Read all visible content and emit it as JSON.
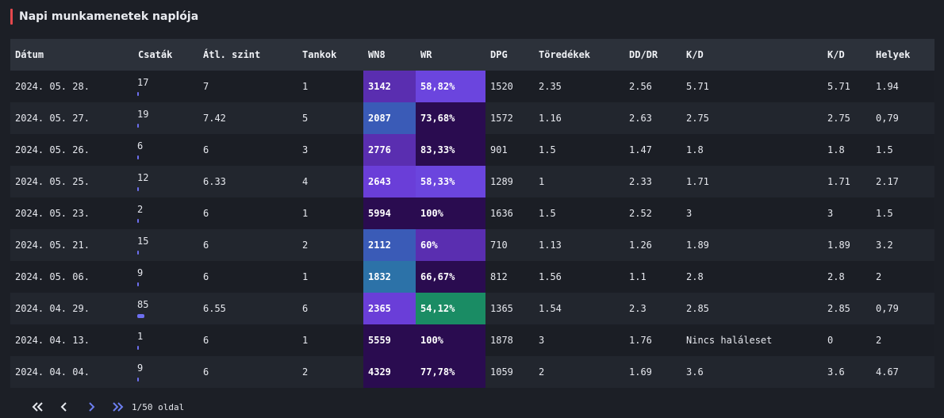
{
  "panel": {
    "title": "Napi munkamenetek naplója"
  },
  "table": {
    "columns": [
      "Dátum",
      "Csaták",
      "Átl. szint",
      "Tankok",
      "WN8",
      "WR",
      "DPG",
      "Töredékek",
      "DD/DR",
      "K/D",
      "K/D",
      "Helyek"
    ],
    "max_battles": 85,
    "rows": [
      {
        "date": "2024. 05. 28.",
        "battles": "17",
        "avg_tier": "7",
        "tanks": "1",
        "wn8": "3142",
        "wr": "58,82%",
        "dpg": "1520",
        "frags": "2.35",
        "dd_dr": "2.56",
        "kd": "5.71",
        "kd2": "5.71",
        "spots": "1.94",
        "wn8_color": "#5a2eb0",
        "wr_color": "#6b45de"
      },
      {
        "date": "2024. 05. 27.",
        "battles": "19",
        "avg_tier": "7.42",
        "tanks": "5",
        "wn8": "2087",
        "wr": "73,68%",
        "dpg": "1572",
        "frags": "1.16",
        "dd_dr": "2.63",
        "kd": "2.75",
        "kd2": "2.75",
        "spots": "0,79",
        "wn8_color": "#3a5bb7",
        "wr_color": "#2a0c50"
      },
      {
        "date": "2024. 05. 26.",
        "battles": "6",
        "avg_tier": "6",
        "tanks": "3",
        "wn8": "2776",
        "wr": "83,33%",
        "dpg": "901",
        "frags": "1.5",
        "dd_dr": "1.47",
        "kd": "1.8",
        "kd2": "1.8",
        "spots": "1.5",
        "wn8_color": "#5a2eb0",
        "wr_color": "#2a0c50"
      },
      {
        "date": "2024. 05. 25.",
        "battles": "12",
        "avg_tier": "6.33",
        "tanks": "4",
        "wn8": "2643",
        "wr": "58,33%",
        "dpg": "1289",
        "frags": "1",
        "dd_dr": "2.33",
        "kd": "1.71",
        "kd2": "1.71",
        "spots": "2.17",
        "wn8_color": "#6a3ed8",
        "wr_color": "#6b45de"
      },
      {
        "date": "2024. 05. 23.",
        "battles": "2",
        "avg_tier": "6",
        "tanks": "1",
        "wn8": "5994",
        "wr": "100%",
        "dpg": "1636",
        "frags": "1.5",
        "dd_dr": "2.52",
        "kd": "3",
        "kd2": "3",
        "spots": "1.5",
        "wn8_color": "#2a0c50",
        "wr_color": "#2a0c50"
      },
      {
        "date": "2024. 05. 21.",
        "battles": "15",
        "avg_tier": "6",
        "tanks": "2",
        "wn8": "2112",
        "wr": "60%",
        "dpg": "710",
        "frags": "1.13",
        "dd_dr": "1.26",
        "kd": "1.89",
        "kd2": "1.89",
        "spots": "3.2",
        "wn8_color": "#3a5bb7",
        "wr_color": "#5a2eb0"
      },
      {
        "date": "2024. 05. 06.",
        "battles": "9",
        "avg_tier": "6",
        "tanks": "1",
        "wn8": "1832",
        "wr": "66,67%",
        "dpg": "812",
        "frags": "1.56",
        "dd_dr": "1.1",
        "kd": "2.8",
        "kd2": "2.8",
        "spots": "2",
        "wn8_color": "#2c72a8",
        "wr_color": "#2a0c50"
      },
      {
        "date": "2024. 04. 29.",
        "battles": "85",
        "avg_tier": "6.55",
        "tanks": "6",
        "wn8": "2365",
        "wr": "54,12%",
        "dpg": "1365",
        "frags": "1.54",
        "dd_dr": "2.3",
        "kd": "2.85",
        "kd2": "2.85",
        "spots": "0,79",
        "wn8_color": "#6a3ed8",
        "wr_color": "#1a8c64"
      },
      {
        "date": "2024. 04. 13.",
        "battles": "1",
        "avg_tier": "6",
        "tanks": "1",
        "wn8": "5559",
        "wr": "100%",
        "dpg": "1878",
        "frags": "3",
        "dd_dr": "1.76",
        "kd": "Nincs haláleset",
        "kd2": "0",
        "spots": "2",
        "wn8_color": "#2a0c50",
        "wr_color": "#2a0c50"
      },
      {
        "date": "2024. 04. 04.",
        "battles": "9",
        "avg_tier": "6",
        "tanks": "2",
        "wn8": "4329",
        "wr": "77,78%",
        "dpg": "1059",
        "frags": "2",
        "dd_dr": "1.69",
        "kd": "3.6",
        "kd2": "3.6",
        "spots": "4.67",
        "wn8_color": "#2a0c50",
        "wr_color": "#2a0c50"
      }
    ]
  },
  "pagination": {
    "page_text": "1/50 oldal"
  }
}
